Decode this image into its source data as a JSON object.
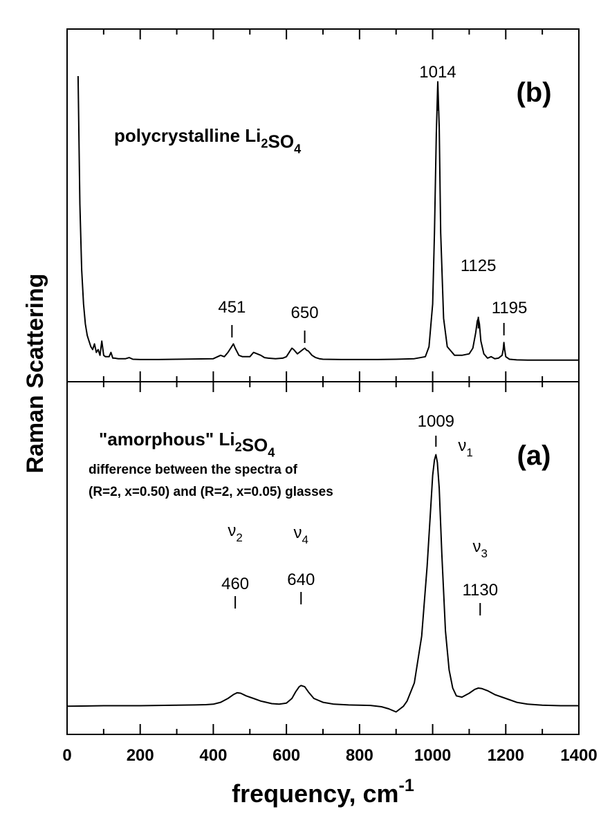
{
  "chart_data": [
    {
      "panel": "(b)",
      "type": "line",
      "label": "polycrystalline Li",
      "label_sub": "2",
      "label_mid": "SO",
      "label_sub2": "4",
      "xlim": [
        0,
        1400
      ],
      "x": [
        30,
        35,
        40,
        45,
        50,
        55,
        60,
        65,
        70,
        75,
        80,
        85,
        90,
        95,
        100,
        105,
        110,
        115,
        120,
        125,
        130,
        140,
        160,
        170,
        180,
        200,
        250,
        300,
        350,
        400,
        420,
        430,
        440,
        450,
        455,
        460,
        470,
        480,
        500,
        510,
        520,
        530,
        540,
        550,
        570,
        590,
        600,
        610,
        615,
        620,
        630,
        640,
        645,
        650,
        655,
        660,
        670,
        680,
        690,
        700,
        750,
        800,
        850,
        900,
        950,
        980,
        990,
        1000,
        1005,
        1010,
        1014,
        1018,
        1022,
        1030,
        1040,
        1060,
        1080,
        1100,
        1110,
        1118,
        1122,
        1125,
        1128,
        1132,
        1140,
        1150,
        1160,
        1170,
        1180,
        1190,
        1193,
        1195,
        1197,
        1200,
        1210,
        1230,
        1260,
        1300,
        1350,
        1400
      ],
      "y": [
        1.0,
        0.55,
        0.32,
        0.2,
        0.13,
        0.09,
        0.07,
        0.05,
        0.04,
        0.06,
        0.03,
        0.04,
        0.02,
        0.07,
        0.02,
        0.015,
        0.015,
        0.015,
        0.03,
        0.01,
        0.01,
        0.008,
        0.008,
        0.012,
        0.006,
        0.005,
        0.005,
        0.006,
        0.007,
        0.008,
        0.02,
        0.015,
        0.03,
        0.05,
        0.06,
        0.045,
        0.02,
        0.015,
        0.015,
        0.03,
        0.025,
        0.02,
        0.012,
        0.01,
        0.008,
        0.01,
        0.015,
        0.035,
        0.045,
        0.04,
        0.025,
        0.035,
        0.04,
        0.045,
        0.038,
        0.035,
        0.02,
        0.012,
        0.008,
        0.006,
        0.005,
        0.005,
        0.005,
        0.006,
        0.008,
        0.015,
        0.05,
        0.2,
        0.45,
        0.8,
        0.98,
        0.82,
        0.45,
        0.15,
        0.05,
        0.02,
        0.02,
        0.025,
        0.045,
        0.1,
        0.14,
        0.15,
        0.13,
        0.07,
        0.025,
        0.01,
        0.015,
        0.008,
        0.01,
        0.02,
        0.04,
        0.065,
        0.04,
        0.015,
        0.006,
        0.004,
        0.003,
        0.003,
        0.003,
        0.003
      ]
    },
    {
      "panel": "(a)",
      "type": "line",
      "label": "\"amorphous\" Li",
      "label_sub": "2",
      "label_mid": "SO",
      "label_sub2": "4",
      "note_lines": [
        "difference between the spectra of",
        "(R=2, x=0.50) and (R=2, x=0.05) glasses"
      ],
      "xlim": [
        0,
        1400
      ],
      "x": [
        0,
        100,
        200,
        300,
        350,
        380,
        400,
        420,
        440,
        455,
        465,
        475,
        490,
        510,
        530,
        560,
        580,
        600,
        615,
        625,
        635,
        640,
        650,
        660,
        675,
        700,
        730,
        770,
        800,
        830,
        860,
        880,
        900,
        920,
        930,
        950,
        970,
        985,
        995,
        1000,
        1005,
        1009,
        1013,
        1018,
        1025,
        1035,
        1045,
        1055,
        1065,
        1080,
        1100,
        1115,
        1125,
        1135,
        1150,
        1170,
        1200,
        1230,
        1260,
        1300,
        1350,
        1400
      ],
      "y": [
        0.01,
        0.012,
        0.012,
        0.014,
        0.015,
        0.016,
        0.018,
        0.025,
        0.04,
        0.055,
        0.062,
        0.06,
        0.05,
        0.04,
        0.03,
        0.02,
        0.018,
        0.022,
        0.04,
        0.065,
        0.085,
        0.09,
        0.085,
        0.065,
        0.04,
        0.025,
        0.018,
        0.015,
        0.014,
        0.013,
        0.008,
        0.0,
        -0.012,
        0.01,
        0.03,
        0.1,
        0.28,
        0.55,
        0.78,
        0.9,
        0.96,
        0.98,
        0.95,
        0.85,
        0.6,
        0.3,
        0.15,
        0.08,
        0.05,
        0.045,
        0.06,
        0.075,
        0.08,
        0.078,
        0.07,
        0.055,
        0.04,
        0.025,
        0.018,
        0.014,
        0.012,
        0.012
      ]
    }
  ],
  "axes": {
    "ylabel": "Raman Scattering",
    "xlabel": "frequency, cm",
    "xlabel_sup": "-1",
    "xticks": [
      "0",
      "200",
      "400",
      "600",
      "800",
      "1000",
      "1200",
      "1400"
    ],
    "xtick_values": [
      0,
      200,
      400,
      600,
      800,
      1000,
      1200,
      1400
    ]
  },
  "panel_b": {
    "tag": "(b)",
    "peak_labels": [
      {
        "text": "1014",
        "x": 1014
      },
      {
        "text": "451",
        "x": 451
      },
      {
        "text": "650",
        "x": 650
      },
      {
        "text": "1125",
        "x": 1125
      },
      {
        "text": "1195",
        "x": 1195
      }
    ]
  },
  "panel_a": {
    "tag": "(a)",
    "peak_labels": [
      {
        "text": "1009",
        "x": 1009
      },
      {
        "text": "460",
        "x": 460
      },
      {
        "text": "640",
        "x": 640
      },
      {
        "text": "1130",
        "x": 1130
      }
    ],
    "modes": [
      {
        "symbol": "ν",
        "sub": "1",
        "x": 1090
      },
      {
        "symbol": "ν",
        "sub": "2",
        "x": 460
      },
      {
        "symbol": "ν",
        "sub": "4",
        "x": 640
      },
      {
        "symbol": "ν",
        "sub": "3",
        "x": 1130
      }
    ]
  }
}
